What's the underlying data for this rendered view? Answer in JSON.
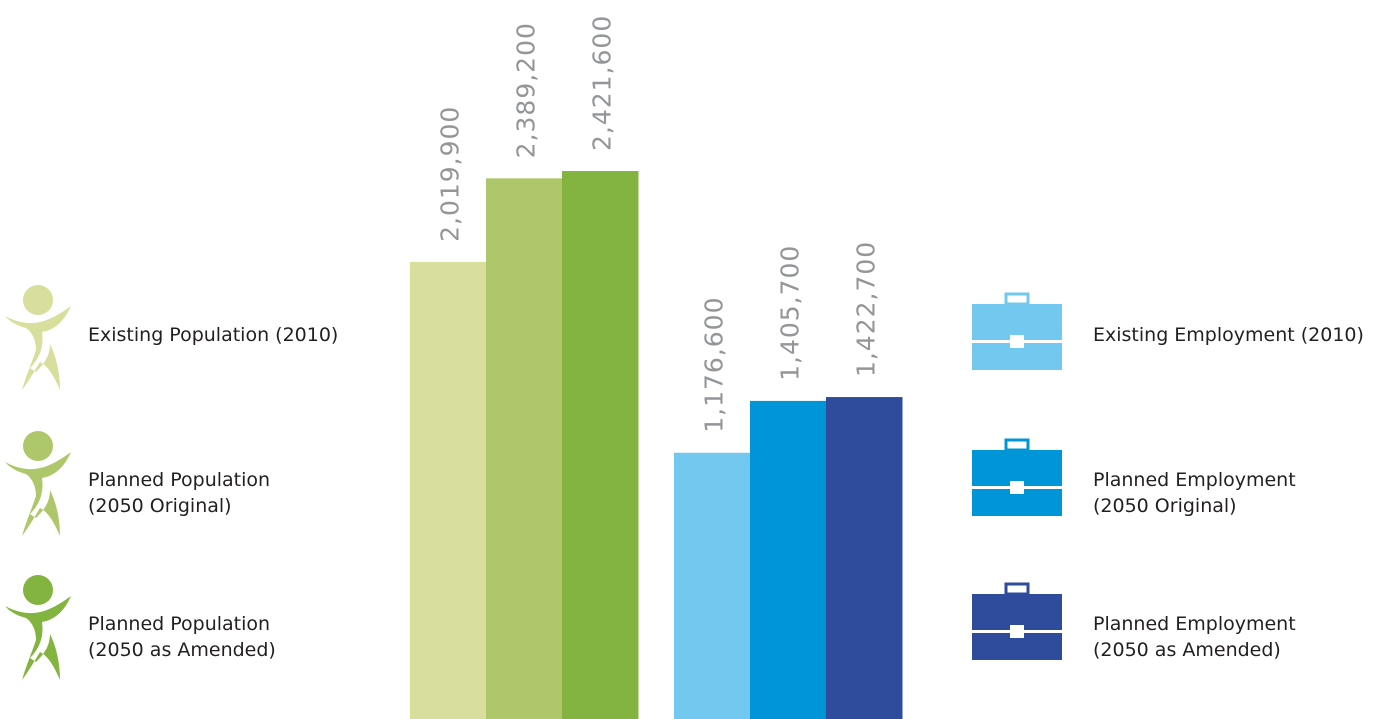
{
  "chart_data": {
    "type": "bar",
    "ylim": [
      0,
      2500000
    ],
    "value_label_color": "#939598",
    "groups": [
      {
        "name": "population",
        "series": [
          {
            "label_line1": "Existing Population (2010)",
            "label_line2": "",
            "value": 2019900,
            "value_label": "2,019,900",
            "color": "#d8de9c",
            "icon": "person-icon"
          },
          {
            "label_line1": "Planned Population",
            "label_line2": "(2050 Original)",
            "value": 2389200,
            "value_label": "2,389,200",
            "color": "#aec76a",
            "icon": "person-icon"
          },
          {
            "label_line1": "Planned Population",
            "label_line2": "(2050 as Amended)",
            "value": 2421600,
            "value_label": "2,421,600",
            "color": "#83b43f",
            "icon": "person-icon"
          }
        ]
      },
      {
        "name": "employment",
        "series": [
          {
            "label_line1": "Existing Employment (2010)",
            "label_line2": "",
            "value": 1176600,
            "value_label": "1,176,600",
            "color": "#72c8ee",
            "icon": "briefcase-icon"
          },
          {
            "label_line1": "Planned Employment",
            "label_line2": "(2050 Original)",
            "value": 1405700,
            "value_label": "1,405,700",
            "color": "#0095d6",
            "icon": "briefcase-icon"
          },
          {
            "label_line1": "Planned Employment",
            "label_line2": "(2050 as Amended)",
            "value": 1422700,
            "value_label": "1,422,700",
            "color": "#2f4b9c",
            "icon": "briefcase-icon"
          }
        ]
      }
    ]
  }
}
